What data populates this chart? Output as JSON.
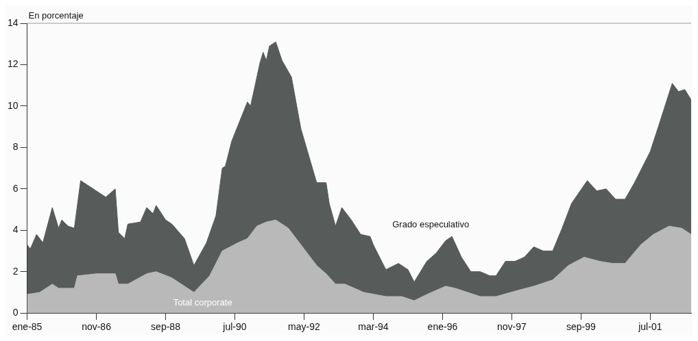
{
  "chart_data": {
    "type": "area",
    "ylabel": "En porcentaje",
    "xlim": [
      "1985-01",
      "2002-08"
    ],
    "xticks": [
      {
        "value": "1985-01",
        "label": "ene-85"
      },
      {
        "value": "1986-11",
        "label": "nov-86"
      },
      {
        "value": "1988-09",
        "label": "sep-88"
      },
      {
        "value": "1990-07",
        "label": "jul-90"
      },
      {
        "value": "1992-05",
        "label": "may-92"
      },
      {
        "value": "1994-03",
        "label": "mar-94"
      },
      {
        "value": "1996-01",
        "label": "ene-96"
      },
      {
        "value": "1997-11",
        "label": "nov-97"
      },
      {
        "value": "1999-09",
        "label": "sep-99"
      },
      {
        "value": "2001-07",
        "label": "jul-01"
      }
    ],
    "ylim": [
      0,
      14
    ],
    "yticks": [
      0,
      2,
      4,
      6,
      8,
      10,
      12,
      14
    ],
    "series": [
      {
        "name": "Grado especulativo",
        "color": "#575b5a",
        "x": [
          "1985-01",
          "1985-02",
          "1985-04",
          "1985-06",
          "1985-09",
          "1985-11",
          "1985-12",
          "1986-02",
          "1986-04",
          "1986-06",
          "1986-09",
          "1987-02",
          "1987-05",
          "1987-06",
          "1987-08",
          "1987-09",
          "1988-01",
          "1988-03",
          "1988-05",
          "1988-06",
          "1988-09",
          "1988-11",
          "1989-03",
          "1989-06",
          "1989-10",
          "1990-01",
          "1990-03",
          "1990-04",
          "1990-06",
          "1990-11",
          "1990-12",
          "1991-03",
          "1991-04",
          "1991-05",
          "1991-06",
          "1991-08",
          "1991-10",
          "1992-01",
          "1992-04",
          "1992-09",
          "1992-12",
          "1993-01",
          "1993-03",
          "1993-05",
          "1993-08",
          "1993-11",
          "1994-02",
          "1994-03",
          "1994-07",
          "1994-11",
          "1995-02",
          "1995-04",
          "1995-08",
          "1995-11",
          "1996-02",
          "1996-04",
          "1996-07",
          "1996-10",
          "1997-01",
          "1997-04",
          "1997-06",
          "1997-09",
          "1997-12",
          "1998-03",
          "1998-06",
          "1998-09",
          "1998-12",
          "1999-03",
          "1999-06",
          "1999-11",
          "2000-02",
          "2000-05",
          "2000-08",
          "2000-10",
          "2000-11",
          "2001-02",
          "2001-07",
          "2001-10",
          "2002-02",
          "2002-04",
          "2002-06",
          "2002-08"
        ],
        "values": [
          3.3,
          3.1,
          3.8,
          3.4,
          5.1,
          4.1,
          4.5,
          4.2,
          4.1,
          6.4,
          6.1,
          5.6,
          6.0,
          3.9,
          3.6,
          4.3,
          4.4,
          5.1,
          4.8,
          5.2,
          4.5,
          4.3,
          3.6,
          2.3,
          3.4,
          4.7,
          7.0,
          7.1,
          8.3,
          10.2,
          10.0,
          12.1,
          12.6,
          12.2,
          12.9,
          13.1,
          12.2,
          11.4,
          8.9,
          6.3,
          6.3,
          5.3,
          4.2,
          5.1,
          4.5,
          3.8,
          3.7,
          3.3,
          2.1,
          2.4,
          2.1,
          1.5,
          2.5,
          2.9,
          3.5,
          3.7,
          2.7,
          2.0,
          2.0,
          1.8,
          1.8,
          2.5,
          2.5,
          2.7,
          3.2,
          3.0,
          3.0,
          4.1,
          5.3,
          6.4,
          5.9,
          6.0,
          5.5,
          5.5,
          5.5,
          6.3,
          7.8,
          9.2,
          11.1,
          10.7,
          10.8,
          10.3
        ]
      },
      {
        "name": "Total corporate",
        "color": "#b9b9b9",
        "x": [
          "1985-01",
          "1985-05",
          "1985-09",
          "1985-11",
          "1986-04",
          "1986-05",
          "1986-11",
          "1987-05",
          "1987-06",
          "1987-09",
          "1988-03",
          "1988-06",
          "1988-11",
          "1989-06",
          "1989-11",
          "1990-03",
          "1990-08",
          "1990-11",
          "1991-02",
          "1991-05",
          "1991-08",
          "1991-12",
          "1992-04",
          "1992-09",
          "1992-12",
          "1993-03",
          "1993-06",
          "1993-12",
          "1994-07",
          "1994-12",
          "1995-04",
          "1995-08",
          "1996-02",
          "1996-05",
          "1996-07",
          "1997-01",
          "1997-06",
          "1998-01",
          "1998-06",
          "1998-12",
          "1999-05",
          "1999-10",
          "2000-03",
          "2000-07",
          "2000-11",
          "2001-04",
          "2001-08",
          "2002-01",
          "2002-05",
          "2002-08"
        ],
        "values": [
          0.9,
          1.0,
          1.4,
          1.2,
          1.2,
          1.8,
          1.9,
          1.9,
          1.4,
          1.4,
          1.9,
          2.0,
          1.7,
          1.0,
          1.8,
          3.0,
          3.4,
          3.6,
          4.2,
          4.4,
          4.5,
          4.1,
          3.3,
          2.3,
          1.9,
          1.4,
          1.4,
          1.0,
          0.8,
          0.8,
          0.6,
          0.9,
          1.3,
          1.2,
          1.1,
          0.8,
          0.8,
          1.1,
          1.3,
          1.6,
          2.3,
          2.7,
          2.5,
          2.4,
          2.4,
          3.3,
          3.8,
          4.2,
          4.1,
          3.8
        ]
      }
    ]
  }
}
